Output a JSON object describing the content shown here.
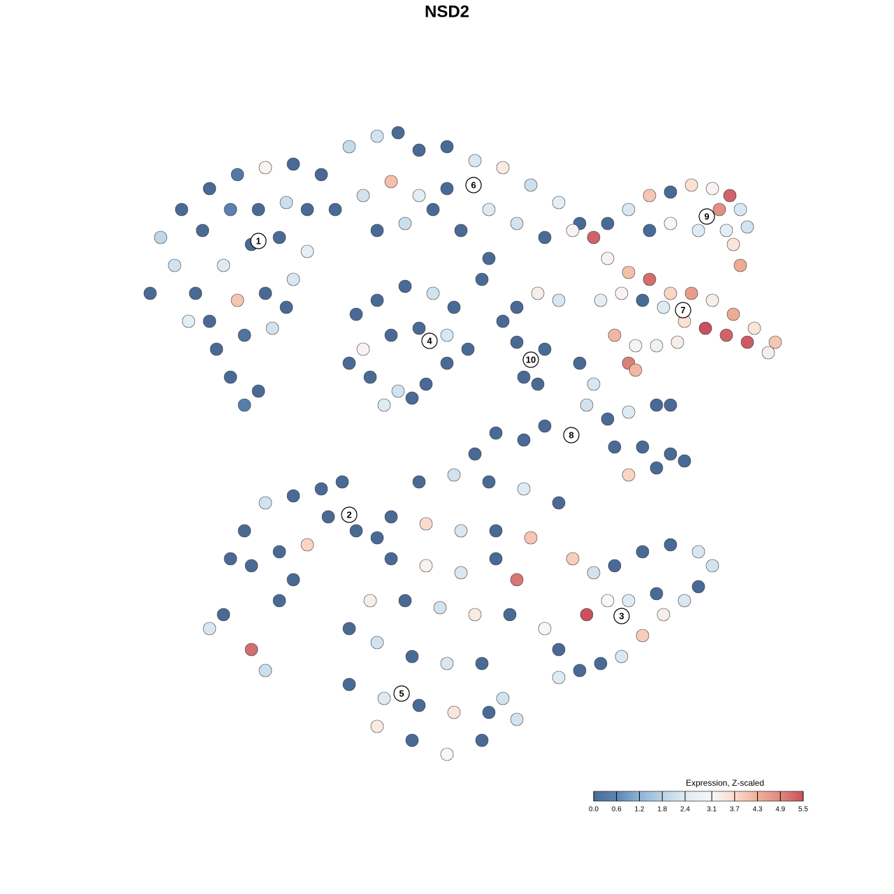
{
  "chart_data": {
    "type": "scatter",
    "title": "NSD2",
    "x": [
      -42.5,
      -41,
      -38,
      -34,
      -30,
      -26,
      -22,
      -39,
      -35,
      -31,
      -27,
      -23,
      -20,
      -36,
      -32,
      -28,
      -24,
      -20,
      -34,
      -30,
      -26,
      -22,
      -33,
      -29,
      -25,
      -31,
      -27,
      -29,
      -37,
      -23,
      -18,
      -14,
      -10,
      -7,
      -4,
      0,
      4,
      8,
      12,
      16,
      19,
      -16,
      -12,
      -8,
      -4,
      0,
      6,
      10,
      14,
      18,
      -10,
      -6,
      -2,
      2,
      6,
      5,
      -13,
      -10,
      -6,
      -2,
      1,
      -12,
      -8,
      -4,
      0,
      3,
      -11,
      -7,
      -3,
      0,
      -9,
      -5,
      -14,
      10,
      13,
      16,
      10,
      14,
      11,
      13,
      8,
      23,
      26,
      29,
      32,
      35,
      38,
      40.5,
      42,
      43,
      41,
      42,
      40,
      36,
      32,
      29,
      39,
      21,
      23,
      26,
      29,
      32,
      35,
      38,
      41,
      44,
      47,
      46,
      43,
      40,
      37,
      34,
      31,
      28,
      25,
      22,
      24,
      27,
      30,
      33,
      26,
      27,
      19,
      21,
      20,
      23,
      26,
      30,
      32,
      24,
      28,
      32,
      34,
      26,
      30,
      14,
      11,
      7,
      4,
      -31,
      -29,
      -26,
      -22,
      -18,
      -15,
      -28,
      -24,
      -22,
      -24,
      -20,
      -17,
      -13,
      -10,
      -34,
      -32,
      -28,
      -26,
      18,
      21,
      24,
      28,
      32,
      36,
      38,
      36,
      34,
      31,
      28,
      25,
      22,
      19,
      16,
      20,
      23,
      26,
      30,
      14,
      16,
      -4,
      1,
      6,
      11,
      16,
      -8,
      -3,
      2,
      7,
      12,
      -8,
      -3,
      2,
      7,
      10,
      -11,
      -6,
      -1,
      4,
      9,
      -14,
      -10,
      -5,
      0,
      5,
      -14,
      -9,
      -4,
      1,
      6,
      10,
      -10,
      -5,
      0,
      5,
      8
    ],
    "y": [
      22,
      30,
      34,
      37,
      39,
      40,
      40.5,
      26,
      31,
      34,
      34,
      35,
      34,
      22,
      26,
      29,
      30,
      28,
      18,
      21,
      22,
      24,
      14,
      16,
      17,
      10,
      8,
      6,
      18,
      20,
      39,
      43,
      44.5,
      45,
      42.5,
      43,
      41,
      40,
      37.5,
      35,
      32,
      34,
      36,
      38,
      36,
      37,
      34,
      32,
      30,
      31,
      31,
      32,
      34,
      31,
      27,
      24,
      19,
      21,
      23,
      22,
      20,
      14,
      16,
      17,
      16,
      14,
      10,
      8,
      9,
      12,
      6,
      7,
      12,
      20,
      22,
      21,
      15,
      14,
      10,
      9,
      18,
      32,
      34,
      36,
      36.5,
      37.5,
      37,
      36,
      34,
      31.5,
      29,
      26,
      31,
      31,
      32,
      31,
      34,
      30,
      27,
      25,
      24,
      22,
      22,
      21,
      19,
      17,
      15,
      13.5,
      15,
      16,
      17,
      18,
      20,
      21,
      22,
      21,
      16,
      14.5,
      14.5,
      15,
      12,
      11,
      12,
      9,
      6,
      4,
      5,
      6,
      6,
      0,
      0,
      -1,
      -2,
      -4,
      -3,
      3,
      1,
      2,
      -1,
      -16,
      -12,
      -8,
      -7,
      -6,
      -5,
      -17,
      -15,
      -19,
      -22,
      -14,
      -10,
      -12,
      -13,
      -26,
      -24,
      -29,
      -32,
      -16,
      -18,
      -17,
      -15,
      -14,
      -15,
      -17,
      -20,
      -22,
      -24,
      -27,
      -30,
      -31,
      -32,
      -33,
      -24,
      -22,
      -22,
      -21,
      -26,
      -29,
      -5,
      -4,
      -5,
      -6,
      -8,
      -10,
      -11,
      -12,
      -12,
      -13,
      -16,
      -17,
      -18,
      -16,
      -19,
      -22,
      -22,
      -23,
      -24,
      -24,
      -26,
      -28,
      -30,
      -31,
      -31,
      -34,
      -36,
      -37,
      -38,
      -38,
      -39,
      -40,
      -42,
      -44,
      -42,
      -36
    ],
    "values": [
      0,
      1.9,
      0,
      0,
      0.3,
      3.2,
      0,
      2.2,
      0,
      0.5,
      0,
      2.1,
      0,
      0,
      2.4,
      0,
      0,
      2.6,
      0,
      4.0,
      0,
      2.3,
      0,
      0.2,
      2.2,
      0,
      0,
      0.4,
      2.5,
      0,
      0,
      2.0,
      2.2,
      0,
      0,
      0,
      2.3,
      3.4,
      2.1,
      2.6,
      0,
      0,
      2.2,
      4.1,
      2.5,
      0,
      2.4,
      2.2,
      0,
      3.2,
      0,
      2.1,
      0,
      0,
      0,
      0,
      0,
      0,
      0,
      2.2,
      0,
      3.2,
      0,
      0,
      2.3,
      0,
      0,
      2.2,
      0,
      0,
      2.4,
      0,
      0,
      0,
      3.3,
      2.3,
      0,
      0,
      0,
      0,
      0,
      0,
      2.3,
      4.0,
      0,
      3.6,
      3.2,
      5.3,
      2.3,
      2.2,
      3.5,
      4.4,
      2.6,
      2.4,
      3.1,
      0,
      4.8,
      5.3,
      3.2,
      4.1,
      5.2,
      3.8,
      4.6,
      3.3,
      4.4,
      3.5,
      4.0,
      3.3,
      5.4,
      5.3,
      5.5,
      3.6,
      2.4,
      0,
      3.2,
      2.6,
      4.2,
      3.0,
      2.8,
      3.3,
      5.0,
      4.2,
      0,
      2.3,
      2.2,
      0,
      2.4,
      0,
      0,
      0,
      0,
      0,
      0,
      3.8,
      0,
      0,
      0,
      0,
      0,
      0,
      0,
      2.2,
      0,
      0,
      0,
      0,
      0,
      0,
      0,
      3.8,
      0,
      0,
      0,
      2.3,
      0,
      5.2,
      2.1,
      3.9,
      2.2,
      0,
      0,
      0,
      2.3,
      2.2,
      0,
      2.3,
      3.3,
      3.9,
      2.3,
      0,
      0,
      2.4,
      5.5,
      3.1,
      2.4,
      0,
      3.1,
      0,
      0,
      2.2,
      0,
      2.4,
      0,
      0,
      3.7,
      2.3,
      0,
      4.0,
      0,
      3.2,
      2.3,
      0,
      5.1,
      3.3,
      0,
      2.2,
      3.4,
      0,
      0,
      2.2,
      0,
      2.3,
      0,
      0,
      2.4,
      0,
      3.5,
      0,
      2.2,
      3.4,
      0,
      3.1,
      0,
      2.2
    ],
    "cluster_labels": {
      "labels": [
        "1",
        "2",
        "3",
        "4",
        "5",
        "6",
        "7",
        "8",
        "9",
        "10"
      ],
      "x": [
        -27,
        -14,
        25,
        -2.5,
        -6.5,
        3.8,
        33.8,
        17.8,
        37.2,
        12
      ],
      "y": [
        29.5,
        -9.7,
        -24.2,
        15.2,
        -35.3,
        37.5,
        19.6,
        1.7,
        33,
        12.5
      ]
    },
    "colorbar": {
      "title": "Expression, Z-scaled",
      "ticks": [
        {
          "value": 0,
          "label": "0.0"
        },
        {
          "value": 0.6,
          "label": "0.6"
        },
        {
          "value": 1.2,
          "label": "1.2"
        },
        {
          "value": 1.8,
          "label": "1.8"
        },
        {
          "value": 2.4,
          "label": "2.4"
        },
        {
          "value": 3.1,
          "label": "3.1"
        },
        {
          "value": 3.7,
          "label": "3.7"
        },
        {
          "value": 4.3,
          "label": "4.3"
        },
        {
          "value": 4.9,
          "label": "4.9"
        },
        {
          "value": 5.5,
          "label": "5.5"
        }
      ],
      "colors": [
        "#4a6a96",
        "#5d86b5",
        "#8db3d6",
        "#b9d3e6",
        "#deebf3",
        "#f7f7f7",
        "#fbdccc",
        "#f0b09a",
        "#df8a7e",
        "#c9505e"
      ]
    }
  }
}
